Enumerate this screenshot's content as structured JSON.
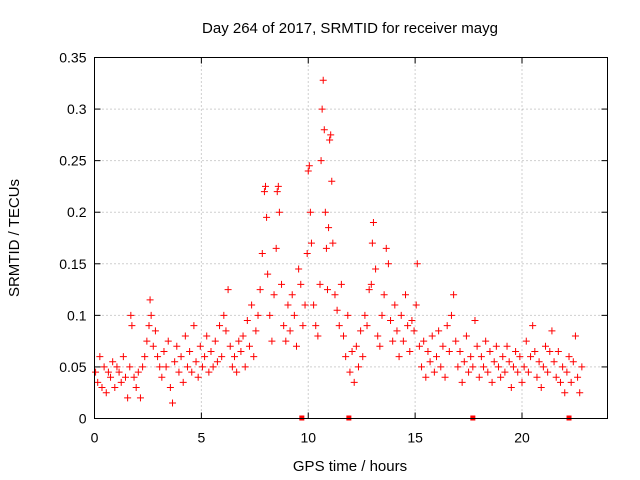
{
  "chart_data": {
    "type": "scatter",
    "title": "Day 264 of 2017, SRMTID for receiver mayg",
    "xlabel": "GPS time / hours",
    "ylabel": "SRMTID / TECUs",
    "xlim": [
      0,
      24
    ],
    "ylim": [
      0,
      0.35
    ],
    "x_ticks": [
      0,
      5,
      10,
      15,
      20
    ],
    "x_tick_labels": [
      "0",
      "5",
      "10",
      "15",
      "20"
    ],
    "y_ticks": [
      0,
      0.05,
      0.1,
      0.15,
      0.2,
      0.25,
      0.3,
      0.35
    ],
    "y_tick_labels": [
      "0",
      "0.05",
      "0.1",
      "0.15",
      "0.2",
      "0.25",
      "0.3",
      "0.35"
    ],
    "grid": true,
    "marker": "+",
    "color": "#ff0000",
    "series": [
      {
        "name": "SRMTID",
        "points": [
          [
            0.05,
            0.045
          ],
          [
            0.15,
            0.035
          ],
          [
            0.25,
            0.06
          ],
          [
            0.35,
            0.03
          ],
          [
            0.45,
            0.05
          ],
          [
            0.55,
            0.025
          ],
          [
            0.65,
            0.045
          ],
          [
            0.75,
            0.04
          ],
          [
            0.85,
            0.055
          ],
          [
            0.95,
            0.03
          ],
          [
            1.05,
            0.05
          ],
          [
            1.15,
            0.045
          ],
          [
            1.25,
            0.035
          ],
          [
            1.35,
            0.06
          ],
          [
            1.45,
            0.04
          ],
          [
            1.55,
            0.02
          ],
          [
            1.65,
            0.05
          ],
          [
            1.7,
            0.1
          ],
          [
            1.75,
            0.09
          ],
          [
            1.85,
            0.04
          ],
          [
            1.95,
            0.03
          ],
          [
            2.05,
            0.045
          ],
          [
            2.15,
            0.02
          ],
          [
            2.25,
            0.05
          ],
          [
            2.35,
            0.06
          ],
          [
            2.45,
            0.075
          ],
          [
            2.55,
            0.09
          ],
          [
            2.6,
            0.115
          ],
          [
            2.65,
            0.1
          ],
          [
            2.75,
            0.07
          ],
          [
            2.85,
            0.085
          ],
          [
            2.95,
            0.06
          ],
          [
            3.05,
            0.05
          ],
          [
            3.15,
            0.04
          ],
          [
            3.25,
            0.065
          ],
          [
            3.35,
            0.05
          ],
          [
            3.45,
            0.075
          ],
          [
            3.55,
            0.03
          ],
          [
            3.65,
            0.015
          ],
          [
            3.75,
            0.055
          ],
          [
            3.85,
            0.07
          ],
          [
            3.95,
            0.045
          ],
          [
            4.05,
            0.06
          ],
          [
            4.15,
            0.035
          ],
          [
            4.25,
            0.08
          ],
          [
            4.35,
            0.05
          ],
          [
            4.45,
            0.065
          ],
          [
            4.55,
            0.045
          ],
          [
            4.65,
            0.09
          ],
          [
            4.75,
            0.055
          ],
          [
            4.85,
            0.04
          ],
          [
            4.95,
            0.07
          ],
          [
            5.05,
            0.05
          ],
          [
            5.15,
            0.06
          ],
          [
            5.25,
            0.08
          ],
          [
            5.35,
            0.045
          ],
          [
            5.45,
            0.065
          ],
          [
            5.55,
            0.05
          ],
          [
            5.65,
            0.075
          ],
          [
            5.75,
            0.055
          ],
          [
            5.85,
            0.09
          ],
          [
            5.95,
            0.06
          ],
          [
            6.05,
            0.1
          ],
          [
            6.15,
            0.085
          ],
          [
            6.25,
            0.125
          ],
          [
            6.35,
            0.07
          ],
          [
            6.45,
            0.05
          ],
          [
            6.55,
            0.06
          ],
          [
            6.65,
            0.045
          ],
          [
            6.75,
            0.075
          ],
          [
            6.85,
            0.065
          ],
          [
            6.95,
            0.08
          ],
          [
            7.05,
            0.05
          ],
          [
            7.15,
            0.095
          ],
          [
            7.25,
            0.07
          ],
          [
            7.35,
            0.11
          ],
          [
            7.45,
            0.06
          ],
          [
            7.55,
            0.085
          ],
          [
            7.65,
            0.1
          ],
          [
            7.75,
            0.125
          ],
          [
            7.85,
            0.16
          ],
          [
            7.95,
            0.22
          ],
          [
            8.0,
            0.225
          ],
          [
            8.05,
            0.195
          ],
          [
            8.1,
            0.14
          ],
          [
            8.2,
            0.1
          ],
          [
            8.3,
            0.075
          ],
          [
            8.4,
            0.12
          ],
          [
            8.5,
            0.165
          ],
          [
            8.55,
            0.22
          ],
          [
            8.6,
            0.225
          ],
          [
            8.65,
            0.2
          ],
          [
            8.75,
            0.13
          ],
          [
            8.85,
            0.09
          ],
          [
            8.95,
            0.075
          ],
          [
            9.05,
            0.11
          ],
          [
            9.15,
            0.085
          ],
          [
            9.25,
            0.12
          ],
          [
            9.35,
            0.1
          ],
          [
            9.45,
            0.07
          ],
          [
            9.55,
            0.145
          ],
          [
            9.65,
            0.13
          ],
          [
            9.75,
            0.09
          ],
          [
            9.85,
            0.11
          ],
          [
            9.95,
            0.16
          ],
          [
            10.0,
            0.24
          ],
          [
            10.05,
            0.245
          ],
          [
            10.1,
            0.2
          ],
          [
            10.15,
            0.17
          ],
          [
            10.25,
            0.11
          ],
          [
            10.35,
            0.09
          ],
          [
            10.45,
            0.08
          ],
          [
            10.55,
            0.13
          ],
          [
            10.6,
            0.25
          ],
          [
            10.65,
            0.3
          ],
          [
            10.7,
            0.328
          ],
          [
            10.75,
            0.28
          ],
          [
            10.8,
            0.2
          ],
          [
            10.85,
            0.165
          ],
          [
            10.9,
            0.125
          ],
          [
            10.95,
            0.185
          ],
          [
            11.0,
            0.27
          ],
          [
            11.05,
            0.275
          ],
          [
            11.1,
            0.23
          ],
          [
            11.15,
            0.17
          ],
          [
            11.25,
            0.12
          ],
          [
            11.35,
            0.105
          ],
          [
            11.45,
            0.09
          ],
          [
            11.55,
            0.13
          ],
          [
            11.65,
            0.08
          ],
          [
            11.75,
            0.06
          ],
          [
            11.85,
            0.1
          ],
          [
            11.95,
            0.045
          ],
          [
            12.05,
            0.065
          ],
          [
            12.15,
            0.035
          ],
          [
            12.25,
            0.07
          ],
          [
            12.35,
            0.05
          ],
          [
            12.45,
            0.085
          ],
          [
            12.55,
            0.06
          ],
          [
            12.65,
            0.1
          ],
          [
            12.75,
            0.09
          ],
          [
            12.85,
            0.125
          ],
          [
            12.95,
            0.13
          ],
          [
            13.0,
            0.17
          ],
          [
            13.05,
            0.19
          ],
          [
            13.15,
            0.145
          ],
          [
            13.25,
            0.08
          ],
          [
            13.35,
            0.07
          ],
          [
            13.45,
            0.1
          ],
          [
            13.55,
            0.12
          ],
          [
            13.65,
            0.165
          ],
          [
            13.75,
            0.15
          ],
          [
            13.85,
            0.095
          ],
          [
            13.95,
            0.075
          ],
          [
            14.05,
            0.11
          ],
          [
            14.15,
            0.085
          ],
          [
            14.25,
            0.06
          ],
          [
            14.35,
            0.1
          ],
          [
            14.45,
            0.075
          ],
          [
            14.55,
            0.12
          ],
          [
            14.65,
            0.09
          ],
          [
            14.75,
            0.065
          ],
          [
            14.85,
            0.095
          ],
          [
            14.95,
            0.085
          ],
          [
            15.05,
            0.11
          ],
          [
            15.1,
            0.15
          ],
          [
            15.2,
            0.07
          ],
          [
            15.3,
            0.05
          ],
          [
            15.4,
            0.075
          ],
          [
            15.5,
            0.04
          ],
          [
            15.6,
            0.065
          ],
          [
            15.7,
            0.055
          ],
          [
            15.8,
            0.08
          ],
          [
            15.9,
            0.045
          ],
          [
            16.0,
            0.06
          ],
          [
            16.1,
            0.085
          ],
          [
            16.2,
            0.05
          ],
          [
            16.3,
            0.07
          ],
          [
            16.4,
            0.04
          ],
          [
            16.5,
            0.09
          ],
          [
            16.6,
            0.065
          ],
          [
            16.7,
            0.1
          ],
          [
            16.8,
            0.12
          ],
          [
            16.9,
            0.075
          ],
          [
            17.0,
            0.05
          ],
          [
            17.1,
            0.065
          ],
          [
            17.2,
            0.035
          ],
          [
            17.3,
            0.055
          ],
          [
            17.4,
            0.08
          ],
          [
            17.5,
            0.045
          ],
          [
            17.6,
            0.06
          ],
          [
            17.7,
            0.05
          ],
          [
            17.8,
            0.095
          ],
          [
            17.9,
            0.07
          ],
          [
            18.0,
            0.04
          ],
          [
            18.1,
            0.06
          ],
          [
            18.2,
            0.05
          ],
          [
            18.3,
            0.075
          ],
          [
            18.4,
            0.045
          ],
          [
            18.5,
            0.065
          ],
          [
            18.6,
            0.035
          ],
          [
            18.7,
            0.055
          ],
          [
            18.8,
            0.07
          ],
          [
            18.9,
            0.05
          ],
          [
            19.0,
            0.04
          ],
          [
            19.1,
            0.06
          ],
          [
            19.2,
            0.045
          ],
          [
            19.3,
            0.07
          ],
          [
            19.4,
            0.055
          ],
          [
            19.5,
            0.03
          ],
          [
            19.6,
            0.05
          ],
          [
            19.7,
            0.065
          ],
          [
            19.8,
            0.045
          ],
          [
            19.9,
            0.06
          ],
          [
            20.0,
            0.035
          ],
          [
            20.1,
            0.05
          ],
          [
            20.2,
            0.075
          ],
          [
            20.3,
            0.045
          ],
          [
            20.4,
            0.06
          ],
          [
            20.5,
            0.09
          ],
          [
            20.6,
            0.065
          ],
          [
            20.7,
            0.04
          ],
          [
            20.8,
            0.055
          ],
          [
            20.9,
            0.03
          ],
          [
            21.0,
            0.05
          ],
          [
            21.1,
            0.07
          ],
          [
            21.2,
            0.045
          ],
          [
            21.3,
            0.065
          ],
          [
            21.4,
            0.085
          ],
          [
            21.5,
            0.055
          ],
          [
            21.6,
            0.04
          ],
          [
            21.7,
            0.065
          ],
          [
            21.8,
            0.035
          ],
          [
            21.9,
            0.05
          ],
          [
            22.0,
            0.025
          ],
          [
            22.1,
            0.045
          ],
          [
            22.2,
            0.06
          ],
          [
            22.3,
            0.035
          ],
          [
            22.4,
            0.055
          ],
          [
            22.5,
            0.08
          ],
          [
            22.6,
            0.04
          ],
          [
            22.7,
            0.025
          ],
          [
            22.8,
            0.05
          ]
        ]
      }
    ],
    "gap_markers_x": [
      9.7,
      11.9,
      17.7,
      22.2
    ]
  }
}
